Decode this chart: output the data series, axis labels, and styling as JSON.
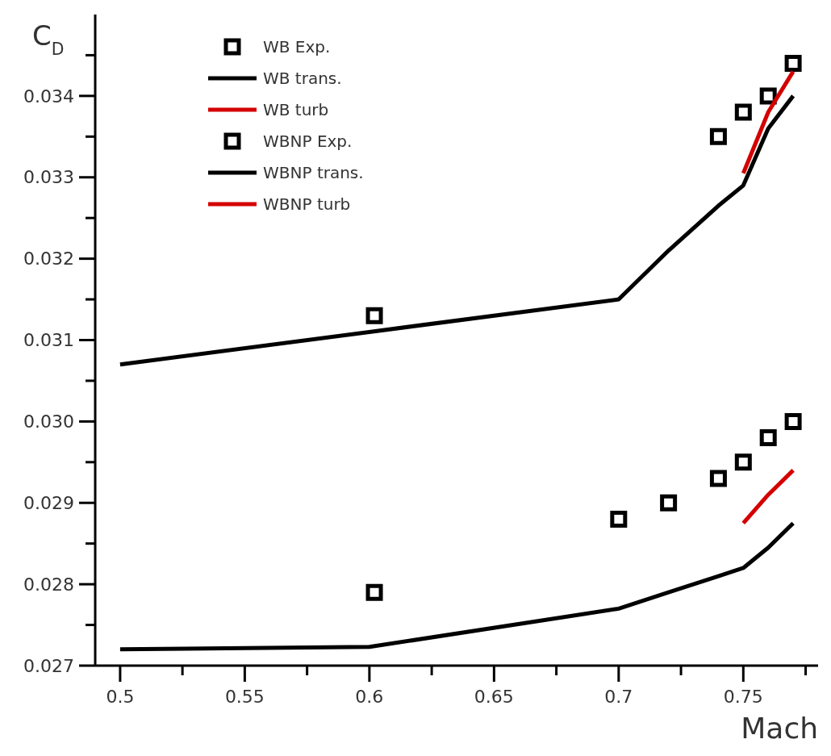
{
  "chart_data": {
    "type": "line",
    "xlabel": "Mach",
    "ylabel": "C$_{D}$",
    "xlim": [
      0.49,
      0.78
    ],
    "ylim": [
      0.027,
      0.035
    ],
    "xticks": [
      0.5,
      {
        "value": 0.525,
        "label": null
      },
      0.55,
      {
        "value": 0.575,
        "label": null
      },
      0.6,
      {
        "value": 0.625,
        "label": null
      },
      0.65,
      {
        "value": 0.675,
        "label": null
      },
      0.7,
      {
        "value": 0.725,
        "label": null
      },
      0.75,
      {
        "value": 0.775,
        "label": null
      }
    ],
    "yticks": [
      {
        "value": 0.027,
        "label": "0.027"
      },
      {
        "value": 0.0275,
        "label": null
      },
      {
        "value": 0.028,
        "label": "0.028"
      },
      {
        "value": 0.0285,
        "label": null
      },
      {
        "value": 0.029,
        "label": "0.029"
      },
      {
        "value": 0.0295,
        "label": null
      },
      {
        "value": 0.03,
        "label": "0.030"
      },
      {
        "value": 0.0305,
        "label": null
      },
      {
        "value": 0.031,
        "label": "0.031"
      },
      {
        "value": 0.0315,
        "label": null
      },
      {
        "value": 0.032,
        "label": "0.032"
      },
      {
        "value": 0.0325,
        "label": null
      },
      {
        "value": 0.033,
        "label": "0.033"
      },
      {
        "value": 0.0335,
        "label": null
      },
      {
        "value": 0.034,
        "label": "0.034"
      },
      {
        "value": 0.0345,
        "label": null
      }
    ],
    "grid": false,
    "legend": "top left",
    "series": [
      {
        "name": "WB Exp.",
        "type": "scatter",
        "marker": "square",
        "color": "#000000",
        "x": [
          0.602,
          0.74,
          0.75,
          0.76,
          0.77
        ],
        "values": [
          0.0313,
          0.0335,
          0.0338,
          0.034,
          0.0344
        ]
      },
      {
        "name": "WB trans.",
        "color": "#000000",
        "x": [
          0.5,
          0.6,
          0.7,
          0.72,
          0.74,
          0.75,
          0.76,
          0.77
        ],
        "values": [
          0.0307,
          0.0311,
          0.0315,
          0.0321,
          0.03265,
          0.0329,
          0.0336,
          0.034
        ]
      },
      {
        "name": "WB turb",
        "color": "#d40000",
        "x": [
          0.75,
          0.76,
          0.77
        ],
        "values": [
          0.03305,
          0.0338,
          0.0343
        ]
      },
      {
        "name": "WBNP Exp.",
        "type": "scatter",
        "marker": "square",
        "color": "#000000",
        "x": [
          0.602,
          0.7,
          0.72,
          0.74,
          0.75,
          0.76,
          0.77
        ],
        "values": [
          0.0279,
          0.0288,
          0.029,
          0.0293,
          0.0295,
          0.0298,
          0.03
        ]
      },
      {
        "name": "WBNP trans.",
        "color": "#000000",
        "x": [
          0.5,
          0.6,
          0.7,
          0.72,
          0.74,
          0.75,
          0.76,
          0.77
        ],
        "values": [
          0.0272,
          0.02723,
          0.0277,
          0.0279,
          0.0281,
          0.0282,
          0.02845,
          0.02875
        ]
      },
      {
        "name": "WBNP turb",
        "color": "#d40000",
        "x": [
          0.75,
          0.76,
          0.77
        ],
        "values": [
          0.02875,
          0.0291,
          0.0294
        ]
      }
    ]
  }
}
